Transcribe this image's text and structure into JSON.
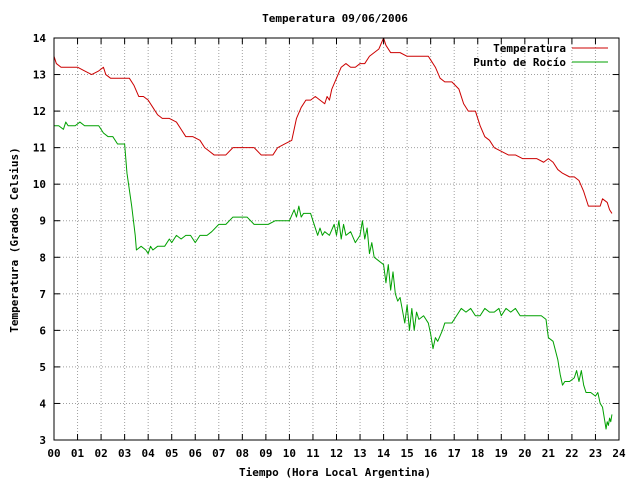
{
  "chart_data": {
    "type": "line",
    "title": "Temperatura 09/06/2006",
    "xlabel": "Tiempo (Hora Local Argentina)",
    "ylabel": "Temperatura (Grados Celsius)",
    "xlim": [
      0,
      24
    ],
    "ylim": [
      3,
      14
    ],
    "grid": true,
    "legend_position": "top-right",
    "x_ticks": [
      {
        "value": 0,
        "label": "00"
      },
      {
        "value": 1,
        "label": "01"
      },
      {
        "value": 2,
        "label": "02"
      },
      {
        "value": 3,
        "label": "03"
      },
      {
        "value": 4,
        "label": "04"
      },
      {
        "value": 5,
        "label": "05"
      },
      {
        "value": 6,
        "label": "06"
      },
      {
        "value": 7,
        "label": "07"
      },
      {
        "value": 8,
        "label": "08"
      },
      {
        "value": 9,
        "label": "09"
      },
      {
        "value": 10,
        "label": "10"
      },
      {
        "value": 11,
        "label": "11"
      },
      {
        "value": 12,
        "label": "12"
      },
      {
        "value": 13,
        "label": "13"
      },
      {
        "value": 14,
        "label": "14"
      },
      {
        "value": 15,
        "label": "15"
      },
      {
        "value": 16,
        "label": "16"
      },
      {
        "value": 17,
        "label": "17"
      },
      {
        "value": 18,
        "label": "18"
      },
      {
        "value": 19,
        "label": "19"
      },
      {
        "value": 20,
        "label": "20"
      },
      {
        "value": 21,
        "label": "21"
      },
      {
        "value": 22,
        "label": "22"
      },
      {
        "value": 23,
        "label": "23"
      },
      {
        "value": 24,
        "label": "24"
      }
    ],
    "y_ticks": [
      {
        "value": 3,
        "label": "3"
      },
      {
        "value": 4,
        "label": "4"
      },
      {
        "value": 5,
        "label": "5"
      },
      {
        "value": 6,
        "label": "6"
      },
      {
        "value": 7,
        "label": "7"
      },
      {
        "value": 8,
        "label": "8"
      },
      {
        "value": 9,
        "label": "9"
      },
      {
        "value": 10,
        "label": "10"
      },
      {
        "value": 11,
        "label": "11"
      },
      {
        "value": 12,
        "label": "12"
      },
      {
        "value": 13,
        "label": "13"
      },
      {
        "value": 14,
        "label": "14"
      }
    ],
    "series": [
      {
        "name": "Temperatura",
        "color": "#cc0000",
        "points": [
          [
            0.0,
            13.5
          ],
          [
            0.1,
            13.3
          ],
          [
            0.3,
            13.2
          ],
          [
            0.6,
            13.2
          ],
          [
            1.0,
            13.2
          ],
          [
            1.3,
            13.1
          ],
          [
            1.6,
            13.0
          ],
          [
            1.9,
            13.1
          ],
          [
            2.1,
            13.2
          ],
          [
            2.2,
            13.0
          ],
          [
            2.4,
            12.9
          ],
          [
            2.7,
            12.9
          ],
          [
            3.0,
            12.9
          ],
          [
            3.2,
            12.9
          ],
          [
            3.4,
            12.7
          ],
          [
            3.6,
            12.4
          ],
          [
            3.8,
            12.4
          ],
          [
            4.0,
            12.3
          ],
          [
            4.2,
            12.1
          ],
          [
            4.4,
            11.9
          ],
          [
            4.6,
            11.8
          ],
          [
            4.9,
            11.8
          ],
          [
            5.2,
            11.7
          ],
          [
            5.4,
            11.5
          ],
          [
            5.6,
            11.3
          ],
          [
            5.9,
            11.3
          ],
          [
            6.2,
            11.2
          ],
          [
            6.4,
            11.0
          ],
          [
            6.6,
            10.9
          ],
          [
            6.8,
            10.8
          ],
          [
            7.0,
            10.8
          ],
          [
            7.3,
            10.8
          ],
          [
            7.6,
            11.0
          ],
          [
            7.9,
            11.0
          ],
          [
            8.2,
            11.0
          ],
          [
            8.5,
            11.0
          ],
          [
            8.8,
            10.8
          ],
          [
            9.1,
            10.8
          ],
          [
            9.3,
            10.8
          ],
          [
            9.5,
            11.0
          ],
          [
            9.8,
            11.1
          ],
          [
            10.1,
            11.2
          ],
          [
            10.2,
            11.5
          ],
          [
            10.3,
            11.8
          ],
          [
            10.5,
            12.1
          ],
          [
            10.7,
            12.3
          ],
          [
            10.9,
            12.3
          ],
          [
            11.1,
            12.4
          ],
          [
            11.3,
            12.3
          ],
          [
            11.5,
            12.2
          ],
          [
            11.6,
            12.4
          ],
          [
            11.7,
            12.3
          ],
          [
            11.8,
            12.6
          ],
          [
            12.0,
            12.9
          ],
          [
            12.2,
            13.2
          ],
          [
            12.4,
            13.3
          ],
          [
            12.6,
            13.2
          ],
          [
            12.8,
            13.2
          ],
          [
            13.0,
            13.3
          ],
          [
            13.2,
            13.3
          ],
          [
            13.4,
            13.5
          ],
          [
            13.6,
            13.6
          ],
          [
            13.8,
            13.7
          ],
          [
            14.0,
            14.0
          ],
          [
            14.1,
            13.8
          ],
          [
            14.3,
            13.6
          ],
          [
            14.5,
            13.6
          ],
          [
            14.7,
            13.6
          ],
          [
            15.0,
            13.5
          ],
          [
            15.3,
            13.5
          ],
          [
            15.6,
            13.5
          ],
          [
            15.9,
            13.5
          ],
          [
            16.0,
            13.4
          ],
          [
            16.2,
            13.2
          ],
          [
            16.4,
            12.9
          ],
          [
            16.6,
            12.8
          ],
          [
            16.9,
            12.8
          ],
          [
            17.2,
            12.6
          ],
          [
            17.4,
            12.2
          ],
          [
            17.6,
            12.0
          ],
          [
            17.9,
            12.0
          ],
          [
            18.1,
            11.6
          ],
          [
            18.3,
            11.3
          ],
          [
            18.5,
            11.2
          ],
          [
            18.7,
            11.0
          ],
          [
            19.0,
            10.9
          ],
          [
            19.3,
            10.8
          ],
          [
            19.6,
            10.8
          ],
          [
            19.9,
            10.7
          ],
          [
            20.2,
            10.7
          ],
          [
            20.5,
            10.7
          ],
          [
            20.8,
            10.6
          ],
          [
            21.0,
            10.7
          ],
          [
            21.2,
            10.6
          ],
          [
            21.4,
            10.4
          ],
          [
            21.6,
            10.3
          ],
          [
            21.9,
            10.2
          ],
          [
            22.1,
            10.2
          ],
          [
            22.3,
            10.1
          ],
          [
            22.5,
            9.8
          ],
          [
            22.7,
            9.4
          ],
          [
            23.0,
            9.4
          ],
          [
            23.2,
            9.4
          ],
          [
            23.3,
            9.6
          ],
          [
            23.5,
            9.5
          ],
          [
            23.6,
            9.3
          ],
          [
            23.7,
            9.2
          ]
        ]
      },
      {
        "name": "Punto de Rocío",
        "color": "#00a000",
        "points": [
          [
            0.0,
            11.6
          ],
          [
            0.2,
            11.6
          ],
          [
            0.4,
            11.5
          ],
          [
            0.5,
            11.7
          ],
          [
            0.6,
            11.6
          ],
          [
            0.9,
            11.6
          ],
          [
            1.1,
            11.7
          ],
          [
            1.3,
            11.6
          ],
          [
            1.6,
            11.6
          ],
          [
            1.9,
            11.6
          ],
          [
            2.1,
            11.4
          ],
          [
            2.3,
            11.3
          ],
          [
            2.5,
            11.3
          ],
          [
            2.7,
            11.1
          ],
          [
            3.0,
            11.1
          ],
          [
            3.1,
            10.3
          ],
          [
            3.3,
            9.4
          ],
          [
            3.45,
            8.6
          ],
          [
            3.5,
            8.2
          ],
          [
            3.7,
            8.3
          ],
          [
            3.9,
            8.2
          ],
          [
            4.0,
            8.1
          ],
          [
            4.1,
            8.3
          ],
          [
            4.2,
            8.2
          ],
          [
            4.4,
            8.3
          ],
          [
            4.7,
            8.3
          ],
          [
            4.9,
            8.5
          ],
          [
            5.0,
            8.4
          ],
          [
            5.2,
            8.6
          ],
          [
            5.4,
            8.5
          ],
          [
            5.6,
            8.6
          ],
          [
            5.8,
            8.6
          ],
          [
            6.0,
            8.4
          ],
          [
            6.2,
            8.6
          ],
          [
            6.5,
            8.6
          ],
          [
            6.7,
            8.7
          ],
          [
            7.0,
            8.9
          ],
          [
            7.3,
            8.9
          ],
          [
            7.6,
            9.1
          ],
          [
            7.9,
            9.1
          ],
          [
            8.2,
            9.1
          ],
          [
            8.5,
            8.9
          ],
          [
            8.8,
            8.9
          ],
          [
            9.1,
            8.9
          ],
          [
            9.4,
            9.0
          ],
          [
            9.7,
            9.0
          ],
          [
            10.0,
            9.0
          ],
          [
            10.2,
            9.3
          ],
          [
            10.3,
            9.1
          ],
          [
            10.4,
            9.4
          ],
          [
            10.5,
            9.1
          ],
          [
            10.6,
            9.2
          ],
          [
            10.9,
            9.2
          ],
          [
            11.1,
            8.8
          ],
          [
            11.2,
            8.6
          ],
          [
            11.3,
            8.8
          ],
          [
            11.4,
            8.6
          ],
          [
            11.5,
            8.7
          ],
          [
            11.7,
            8.6
          ],
          [
            11.9,
            8.9
          ],
          [
            12.0,
            8.6
          ],
          [
            12.1,
            9.0
          ],
          [
            12.2,
            8.5
          ],
          [
            12.3,
            8.9
          ],
          [
            12.4,
            8.6
          ],
          [
            12.6,
            8.7
          ],
          [
            12.8,
            8.4
          ],
          [
            13.0,
            8.6
          ],
          [
            13.1,
            9.0
          ],
          [
            13.2,
            8.5
          ],
          [
            13.3,
            8.8
          ],
          [
            13.4,
            8.1
          ],
          [
            13.5,
            8.4
          ],
          [
            13.6,
            8.0
          ],
          [
            13.8,
            7.9
          ],
          [
            14.0,
            7.8
          ],
          [
            14.1,
            7.3
          ],
          [
            14.2,
            7.8
          ],
          [
            14.3,
            7.1
          ],
          [
            14.4,
            7.6
          ],
          [
            14.5,
            7.0
          ],
          [
            14.6,
            6.8
          ],
          [
            14.7,
            6.9
          ],
          [
            14.9,
            6.2
          ],
          [
            15.0,
            6.7
          ],
          [
            15.1,
            6.0
          ],
          [
            15.2,
            6.6
          ],
          [
            15.3,
            6.0
          ],
          [
            15.4,
            6.5
          ],
          [
            15.5,
            6.3
          ],
          [
            15.7,
            6.4
          ],
          [
            15.9,
            6.2
          ],
          [
            16.0,
            5.9
          ],
          [
            16.1,
            5.5
          ],
          [
            16.2,
            5.8
          ],
          [
            16.3,
            5.7
          ],
          [
            16.5,
            6.0
          ],
          [
            16.6,
            6.2
          ],
          [
            16.9,
            6.2
          ],
          [
            17.1,
            6.4
          ],
          [
            17.3,
            6.6
          ],
          [
            17.5,
            6.5
          ],
          [
            17.7,
            6.6
          ],
          [
            17.9,
            6.4
          ],
          [
            18.1,
            6.4
          ],
          [
            18.3,
            6.6
          ],
          [
            18.5,
            6.5
          ],
          [
            18.7,
            6.5
          ],
          [
            18.9,
            6.6
          ],
          [
            19.0,
            6.4
          ],
          [
            19.2,
            6.6
          ],
          [
            19.4,
            6.5
          ],
          [
            19.6,
            6.6
          ],
          [
            19.8,
            6.4
          ],
          [
            20.1,
            6.4
          ],
          [
            20.4,
            6.4
          ],
          [
            20.7,
            6.4
          ],
          [
            20.9,
            6.3
          ],
          [
            21.0,
            5.8
          ],
          [
            21.2,
            5.7
          ],
          [
            21.4,
            5.2
          ],
          [
            21.5,
            4.8
          ],
          [
            21.6,
            4.5
          ],
          [
            21.7,
            4.6
          ],
          [
            21.9,
            4.6
          ],
          [
            22.1,
            4.7
          ],
          [
            22.2,
            4.9
          ],
          [
            22.3,
            4.6
          ],
          [
            22.4,
            4.9
          ],
          [
            22.5,
            4.5
          ],
          [
            22.6,
            4.3
          ],
          [
            22.8,
            4.3
          ],
          [
            23.0,
            4.2
          ],
          [
            23.1,
            4.3
          ],
          [
            23.2,
            4.0
          ],
          [
            23.3,
            3.9
          ],
          [
            23.4,
            3.5
          ],
          [
            23.45,
            3.3
          ],
          [
            23.5,
            3.5
          ],
          [
            23.55,
            3.4
          ],
          [
            23.6,
            3.6
          ],
          [
            23.65,
            3.5
          ],
          [
            23.7,
            3.7
          ]
        ]
      }
    ]
  }
}
